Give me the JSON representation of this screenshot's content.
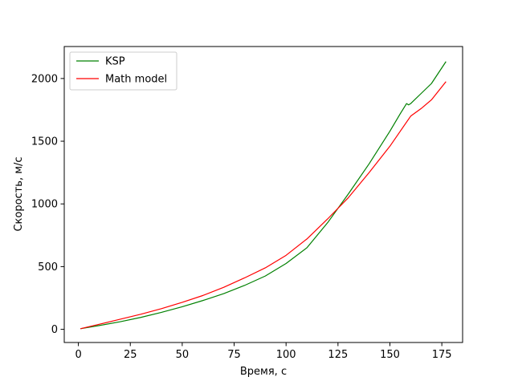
{
  "chart_data": {
    "type": "line",
    "xlabel": "Время, с",
    "ylabel": "Скорость, м/с",
    "xlim": [
      -6.8,
      185
    ],
    "ylim": [
      -105,
      2255
    ],
    "xticks": [
      0,
      25,
      50,
      75,
      100,
      125,
      150,
      175
    ],
    "yticks": [
      0,
      500,
      1000,
      1500,
      2000
    ],
    "grid": false,
    "legend_position": "upper left",
    "series": [
      {
        "name": "KSP",
        "color": "#008000",
        "x": [
          1,
          10,
          20,
          30,
          40,
          50,
          60,
          70,
          80,
          90,
          100,
          110,
          120,
          130,
          140,
          150,
          155,
          158,
          159,
          160,
          165,
          170,
          177
        ],
        "y": [
          5,
          30,
          60,
          95,
          135,
          180,
          230,
          285,
          350,
          425,
          525,
          650,
          850,
          1080,
          1320,
          1580,
          1720,
          1800,
          1790,
          1800,
          1880,
          1960,
          2135
        ]
      },
      {
        "name": "Math model",
        "color": "#ff0000",
        "x": [
          1,
          10,
          20,
          30,
          40,
          50,
          60,
          70,
          80,
          90,
          100,
          110,
          120,
          130,
          140,
          150,
          160,
          165,
          170,
          177
        ],
        "y": [
          5,
          40,
          80,
          120,
          165,
          215,
          270,
          335,
          410,
          490,
          590,
          720,
          880,
          1050,
          1250,
          1460,
          1700,
          1760,
          1830,
          1975
        ]
      }
    ]
  }
}
